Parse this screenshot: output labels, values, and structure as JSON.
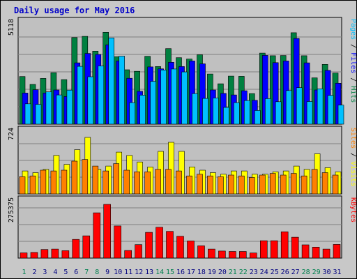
{
  "colors": {
    "page_bg": "#c8c8c8",
    "plot_bg": "#c0c0c0",
    "grid": "#808080",
    "title": "#0000c8",
    "hits": "#008040",
    "files": "#0000ff",
    "pages": "#00c0ff",
    "visits": "#ffff00",
    "sites": "#ff8000",
    "kbytes": "#ff0000",
    "weekend_day": "#00804f",
    "weekday": "#000080"
  },
  "chart_data": {
    "type": "bar",
    "title": "Daily usage for May 2016",
    "categories": [
      "1",
      "2",
      "3",
      "4",
      "5",
      "6",
      "7",
      "8",
      "9",
      "10",
      "11",
      "12",
      "13",
      "14",
      "15",
      "16",
      "17",
      "18",
      "19",
      "20",
      "21",
      "22",
      "23",
      "24",
      "25",
      "26",
      "27",
      "28",
      "29",
      "30",
      "31"
    ],
    "weekend_days": [
      "1",
      "7",
      "8",
      "14",
      "15",
      "21",
      "22",
      "28",
      "29"
    ],
    "panels": [
      {
        "name": "hits-files-pages",
        "max_label": "5118",
        "ymax": 5118,
        "legend": [
          {
            "text": "Pages",
            "color": "#00c0ff"
          },
          {
            "text": " / ",
            "color": "#000000"
          },
          {
            "text": "Files",
            "color": "#0000ff"
          },
          {
            "text": " / ",
            "color": "#000000"
          },
          {
            "text": "Hits",
            "color": "#008040"
          }
        ],
        "series": [
          {
            "name": "Hits",
            "color": "#008040",
            "values": [
              2480,
              2070,
              2380,
              2680,
              2320,
              4510,
              4570,
              3800,
              4780,
              3510,
              2830,
              2750,
              3530,
              3000,
              3930,
              3460,
              3390,
              3610,
              2610,
              2100,
              2500,
              2490,
              1590,
              3700,
              3560,
              3570,
              4760,
              3560,
              2410,
              3110,
              2660
            ]
          },
          {
            "name": "Files",
            "color": "#0000ff",
            "values": [
              1620,
              1790,
              1620,
              1780,
              1440,
              3190,
              3680,
              3630,
              4130,
              3290,
              2390,
              1710,
              2980,
              2880,
              3220,
              3000,
              3290,
              3140,
              1780,
              1600,
              1520,
              1740,
              1240,
              3580,
              3200,
              3290,
              4460,
              3190,
              1780,
              2800,
              2130
            ]
          },
          {
            "name": "Pages",
            "color": "#00c0ff",
            "values": [
              1060,
              1030,
              1680,
              1520,
              1770,
              3010,
              2470,
              3030,
              4490,
              3540,
              1120,
              1510,
              2230,
              2820,
              2870,
              2720,
              1590,
              1340,
              1360,
              870,
              1120,
              1230,
              710,
              1330,
              1170,
              1750,
              1900,
              1180,
              1840,
              1500,
              990
            ]
          }
        ]
      },
      {
        "name": "visits-sites",
        "max_label": "724",
        "ymax": 724,
        "legend": [
          {
            "text": "Sites",
            "color": "#ff8000"
          },
          {
            "text": " / ",
            "color": "#000000"
          },
          {
            "text": "Visits",
            "color": "#ffff00"
          }
        ],
        "series": [
          {
            "name": "Visits",
            "color": "#ffff00",
            "values": [
              280,
              260,
              300,
              470,
              360,
              540,
              690,
              300,
              340,
              510,
              470,
              390,
              330,
              520,
              630,
              520,
              330,
              290,
              260,
              240,
              280,
              280,
              240,
              240,
              270,
              280,
              340,
              300,
              490,
              320,
              270
            ]
          },
          {
            "name": "Sites",
            "color": "#ff8000",
            "values": [
              210,
              220,
              290,
              280,
              290,
              400,
              420,
              340,
              280,
              370,
              290,
              270,
              270,
              300,
              300,
              280,
              220,
              240,
              220,
              210,
              230,
              220,
              200,
              230,
              250,
              230,
              250,
              220,
              300,
              260,
              230
            ]
          }
        ]
      },
      {
        "name": "kbytes",
        "max_label": "275375",
        "ymax": 275375,
        "legend": [
          {
            "text": "KBytes",
            "color": "#ff0000"
          }
        ],
        "series": [
          {
            "name": "KBytes",
            "color": "#ff0000",
            "values": [
              27000,
              29000,
              44000,
              46000,
              38000,
              96000,
              114000,
              232000,
              275375,
              165000,
              39000,
              69000,
              132000,
              158000,
              137000,
              112000,
              88000,
              63000,
              46000,
              36000,
              34000,
              34000,
              26000,
              89000,
              89000,
              135000,
              107000,
              68000,
              56000,
              46000,
              70000
            ]
          }
        ]
      }
    ]
  }
}
